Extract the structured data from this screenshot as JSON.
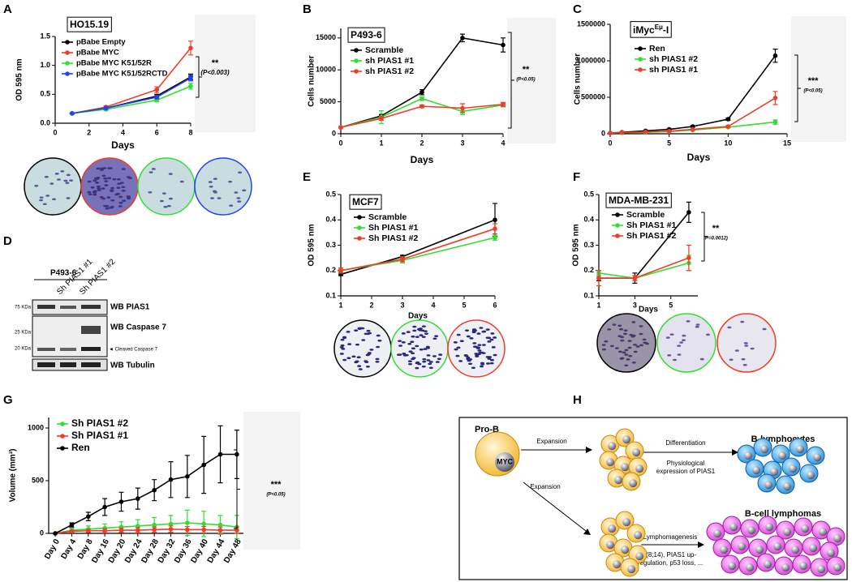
{
  "chart_data": [
    {
      "panel": "A",
      "type": "line",
      "title": "HO15.19",
      "x": [
        1,
        3,
        6,
        8
      ],
      "xlim": [
        0,
        8
      ],
      "xticks": [
        0,
        2,
        4,
        6,
        8
      ],
      "ylim": [
        0,
        1.5
      ],
      "yticks": [
        {
          "value": 0,
          "label": "0.0"
        },
        0.5,
        {
          "value": 1,
          "label": "1.0"
        },
        1.5
      ],
      "xlabel": "Days",
      "ylabel": "OD 595 nm",
      "series": [
        {
          "name": "pBabe Empty",
          "color": "#000000",
          "values": [
            0.17,
            0.26,
            0.47,
            0.8
          ],
          "errors": [
            0.01,
            0.02,
            0.03,
            0.05
          ]
        },
        {
          "name": "pBabe MYC",
          "color": "#f03c28",
          "values": [
            0.17,
            0.28,
            0.58,
            1.3
          ],
          "errors": [
            0.01,
            0.02,
            0.05,
            0.12
          ]
        },
        {
          "name": "pBabe MYC K51/52R",
          "color": "#33dd33",
          "values": [
            0.17,
            0.24,
            0.4,
            0.64
          ],
          "errors": [
            0.01,
            0.02,
            0.03,
            0.05
          ]
        },
        {
          "name": "pBabe MYC K51/52RCTD",
          "color": "#2244ee",
          "values": [
            0.17,
            0.26,
            0.45,
            0.78
          ],
          "errors": [
            0.01,
            0.02,
            0.03,
            0.05
          ]
        }
      ],
      "annotation": {
        "stars": "**",
        "p": "(P<0.003)"
      }
    },
    {
      "panel": "B",
      "type": "line",
      "title": "P493-6",
      "x": [
        0,
        1,
        2,
        3,
        4
      ],
      "xlim": [
        0,
        4
      ],
      "xticks": [
        0,
        1,
        2,
        3,
        4
      ],
      "ylim": [
        0,
        16500
      ],
      "yticks": [
        0,
        5000,
        10000,
        15000
      ],
      "xlabel": "Days",
      "ylabel": "Cells number",
      "series": [
        {
          "name": "Scramble",
          "color": "#000000",
          "values": [
            1000,
            2800,
            6500,
            15000,
            13900
          ],
          "errors": [
            100,
            200,
            400,
            600,
            1100
          ]
        },
        {
          "name": "sh PIAS1 #1",
          "color": "#33dd33",
          "values": [
            1000,
            2600,
            5500,
            3500,
            4500
          ],
          "errors": [
            100,
            1000,
            300,
            500,
            300
          ]
        },
        {
          "name": "sh PIAS1 #2",
          "color": "#f03c28",
          "values": [
            1000,
            2400,
            4300,
            4000,
            4600
          ],
          "errors": [
            100,
            300,
            200,
            700,
            300
          ]
        }
      ],
      "annotation": {
        "stars": "**",
        "p": "(P<0.05)"
      }
    },
    {
      "panel": "C",
      "type": "line",
      "title": [
        "iMyc",
        "Eμ",
        "-I"
      ],
      "x": [
        0,
        1,
        3,
        5,
        7,
        10,
        14
      ],
      "xlim": [
        0,
        15
      ],
      "xticks": [
        0,
        5,
        10,
        15
      ],
      "ylim": [
        0,
        1500000
      ],
      "yticks": [
        0,
        500000,
        1000000,
        1500000
      ],
      "xlabel": "Days",
      "ylabel": "Cells number",
      "series": [
        {
          "name": "Ren",
          "color": "#000000",
          "values": [
            10000,
            20000,
            40000,
            60000,
            100000,
            200000,
            1070000
          ],
          "errors": [
            2000,
            3000,
            5000,
            8000,
            10000,
            15000,
            90000
          ]
        },
        {
          "name": "sh PIAS1 #2",
          "color": "#33dd33",
          "values": [
            10000,
            15000,
            20000,
            30000,
            50000,
            90000,
            160000
          ],
          "errors": [
            2000,
            3000,
            4000,
            5000,
            6000,
            10000,
            30000
          ]
        },
        {
          "name": "sh PIAS1 #1",
          "color": "#f03c28",
          "values": [
            10000,
            15000,
            25000,
            35000,
            60000,
            100000,
            490000
          ],
          "errors": [
            2000,
            3000,
            4000,
            5000,
            6000,
            10000,
            90000
          ]
        }
      ],
      "annotation": {
        "stars": "***",
        "p": "(P<0.05)"
      }
    },
    {
      "panel": "E",
      "type": "line",
      "title": "MCF7",
      "x": [
        1,
        3,
        6
      ],
      "xlim": [
        1,
        6
      ],
      "xticks": [
        1,
        2,
        3,
        4,
        5,
        6
      ],
      "ylim": [
        0.1,
        0.5
      ],
      "yticks": [
        0.1,
        0.2,
        0.3,
        0.4,
        0.5
      ],
      "xlabel": "Days",
      "ylabel": "OD 595 nm",
      "series": [
        {
          "name": "Scramble",
          "color": "#000000",
          "values": [
            0.185,
            0.255,
            0.4
          ],
          "errors": [
            0.005,
            0.005,
            0.065
          ]
        },
        {
          "name": "Sh PIAS1 #1",
          "color": "#33dd33",
          "values": [
            0.2,
            0.24,
            0.33
          ],
          "errors": [
            0.005,
            0.01,
            0.01
          ]
        },
        {
          "name": "Sh PIAS1 #2",
          "color": "#f03c28",
          "values": [
            0.2,
            0.245,
            0.365
          ],
          "errors": [
            0.01,
            0.01,
            0.02
          ]
        }
      ]
    },
    {
      "panel": "F",
      "type": "line",
      "title": "MDA-MB-231",
      "x": [
        1,
        3,
        6
      ],
      "xlim": [
        1,
        6.5
      ],
      "xticks": [
        1,
        3,
        5
      ],
      "ylim": [
        0.1,
        0.5
      ],
      "yticks": [
        0.1,
        0.2,
        0.3,
        0.4,
        0.5
      ],
      "xlabel": "Days",
      "ylabel": "OD 595 nm",
      "series": [
        {
          "name": "Scramble",
          "color": "#000000",
          "values": [
            0.17,
            0.17,
            0.43
          ],
          "errors": [
            0.01,
            0.02,
            0.04
          ]
        },
        {
          "name": "Sh PIAS1 #1",
          "color": "#33dd33",
          "values": [
            0.19,
            0.17,
            0.23
          ],
          "errors": [
            0.01,
            0.01,
            0.03
          ]
        },
        {
          "name": "Sh PIAS1 #2",
          "color": "#f03c28",
          "values": [
            0.17,
            0.17,
            0.25
          ],
          "errors": [
            0.03,
            0.01,
            0.05
          ]
        }
      ],
      "annotation": {
        "stars": "**",
        "p": "(P=0.0012)"
      }
    },
    {
      "panel": "G",
      "type": "line",
      "categories": [
        "Day 0",
        "Day 4",
        "Day 8",
        "Day 16",
        "Day 20",
        "Day 24",
        "Day 28",
        "Day 32",
        "Day 36",
        "Day 40",
        "Day 44",
        "Day 48"
      ],
      "ylim": [
        0,
        1100
      ],
      "yticks": [
        0,
        500,
        1000
      ],
      "ylabel": "Volume (mm³)",
      "series": [
        {
          "name": "Sh PIAS1 #2",
          "color": "#33dd33",
          "values": [
            0,
            30,
            40,
            50,
            60,
            70,
            80,
            90,
            100,
            90,
            80,
            60
          ],
          "errors": [
            0,
            20,
            30,
            40,
            50,
            60,
            70,
            80,
            120,
            120,
            90,
            110
          ]
        },
        {
          "name": "Sh PIAS1 #1",
          "color": "#f03c28",
          "values": [
            0,
            20,
            25,
            25,
            30,
            30,
            35,
            40,
            35,
            35,
            30,
            30
          ],
          "errors": [
            0,
            10,
            15,
            20,
            20,
            25,
            25,
            30,
            30,
            30,
            30,
            30
          ]
        },
        {
          "name": "Ren",
          "color": "#000000",
          "values": [
            0,
            80,
            160,
            250,
            300,
            330,
            410,
            510,
            540,
            650,
            750,
            750
          ],
          "errors": [
            0,
            20,
            40,
            80,
            90,
            100,
            100,
            170,
            200,
            270,
            270,
            230
          ]
        }
      ],
      "annotation": {
        "stars": "***",
        "p": "(P<0.05)"
      }
    }
  ],
  "blot": {
    "panel": "D",
    "sample": "P493-6",
    "lanes": [
      "Sh PIAS1 #1",
      "Sh PIAS1 #2"
    ],
    "markers": [
      "75 KDa",
      "25 KDa",
      "20 KDa"
    ],
    "rows": [
      "WB PIAS1",
      "WB Caspase 7",
      "◄ Cleaved Caspase 7",
      "WB Tubulin"
    ]
  },
  "diagram": {
    "panel": "H",
    "pro_b": "Pro-B",
    "myc": "MYC",
    "expansion_top": "Expansion",
    "differentiation": "Differentiation",
    "physiological": [
      "Physiological",
      "expression of PIAS1"
    ],
    "b_lymphocytes": "B-lymphocytes",
    "expansion_bottom": "Expansion",
    "lymphomagenesis": "Lymphomagenesis",
    "events": [
      "t(8;14), PIAS1 up-",
      "regulation, p53 loss, ..."
    ],
    "b_cell_lymphomas": "B-cell lymphomas"
  }
}
